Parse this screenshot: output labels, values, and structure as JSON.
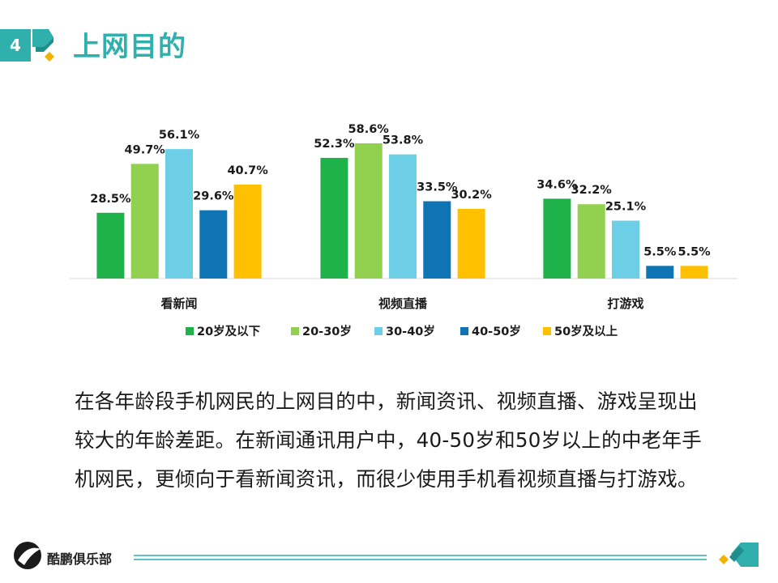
{
  "slide": {
    "number": "4",
    "title": "上网目的"
  },
  "chart_data": {
    "type": "bar",
    "categories": [
      "看新闻",
      "视频直播",
      "打游戏"
    ],
    "series": [
      {
        "name": "20岁及以下",
        "color": "#1fb24a",
        "values": [
          28.5,
          52.3,
          34.6
        ],
        "labels": [
          "28.5%",
          "52.3%",
          "34.6%"
        ]
      },
      {
        "name": "20-30岁",
        "color": "#92d050",
        "values": [
          49.7,
          58.6,
          32.2
        ],
        "labels": [
          "49.7%",
          "58.6%",
          "32.2%"
        ]
      },
      {
        "name": "30-40岁",
        "color": "#6dcfe6",
        "values": [
          56.1,
          53.8,
          25.1
        ],
        "labels": [
          "56.1%",
          "53.8%",
          "25.1%"
        ]
      },
      {
        "name": "40-50岁",
        "color": "#0e74b4",
        "values": [
          29.6,
          33.5,
          5.5
        ],
        "labels": [
          "29.6%",
          "33.5%",
          "5.5%"
        ]
      },
      {
        "name": "50岁及以上",
        "color": "#ffc000",
        "values": [
          40.7,
          30.2,
          5.5
        ],
        "labels": [
          "40.7%",
          "30.2%",
          "5.5%"
        ]
      }
    ],
    "ylim": [
      0,
      65
    ],
    "grid": false,
    "legend_position": "bottom"
  },
  "description": "在各年龄段手机网民的上网目的中，新闻资讯、视频直播、游戏呈现出较大的年龄差距。在新闻通讯用户中，40-50岁和50岁以上的中老年手机网民，更倾向于看新闻资讯，而很少使用手机看视频直播与打游戏。",
  "footer": {
    "brand": "酷鹏俱乐部"
  },
  "colors": {
    "accent": "#2fb0ad",
    "accent_dark": "#1f8f8d",
    "highlight": "#f2b200"
  }
}
